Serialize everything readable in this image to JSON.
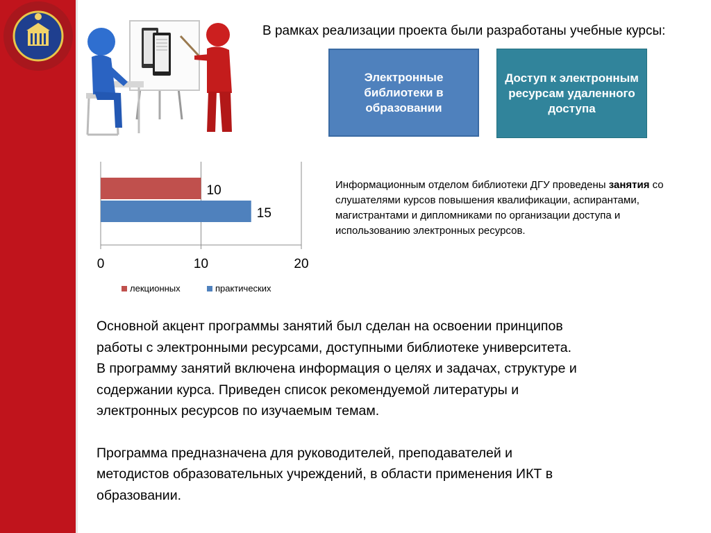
{
  "slide": {
    "intro": "В рамках  реализации  проекта были разработаны учебные курсы:",
    "box_1": "Электронные библиотеки в образовании",
    "box_2": "Доступ к электронным ресурсам удаленного доступа",
    "info_before": "Информационным отделом библиотеки ДГУ проведены ",
    "info_bold": "занятия",
    "info_after": " со слушателями курсов повышения квалификации, аспирантами,  магистрантами и дипломниками по организации доступа и использованию  электронных ресурсов.",
    "para_1_lines": [
      "Основной акцент программы занятий был сделан на освоении принципов",
      "работы с электронными ресурсами, доступными библиотеке университета.",
      "В программу занятий  включена информация о целях и задачах, структуре и",
      "содержании курса. Приведен список рекомендуемой литературы и",
      "электронных ресурсов по изучаемым темам."
    ],
    "para_2_lines": [
      "Программа предназначена для руководителей, преподавателей и",
      "методистов образовательных учреждений, в области применения ИКТ в",
      "образовании."
    ],
    "colors": {
      "sidebar": "#c0141c",
      "box_1": "#4f81bd",
      "box_2": "#31849b",
      "series_1": "#c0504d",
      "series_2": "#4f81bd"
    }
  },
  "chart_data": {
    "type": "bar",
    "orientation": "horizontal",
    "series": [
      {
        "name": "лекционных",
        "values": [
          10
        ],
        "color": "#c0504d"
      },
      {
        "name": "практических",
        "values": [
          15
        ],
        "color": "#4f81bd"
      }
    ],
    "data_labels": [
      "10",
      "15"
    ],
    "xlim": [
      0,
      20
    ],
    "xticks": [
      0,
      10,
      20
    ],
    "xtick_labels": [
      "0",
      "10",
      "20"
    ],
    "grid": true,
    "legend_position": "bottom"
  }
}
